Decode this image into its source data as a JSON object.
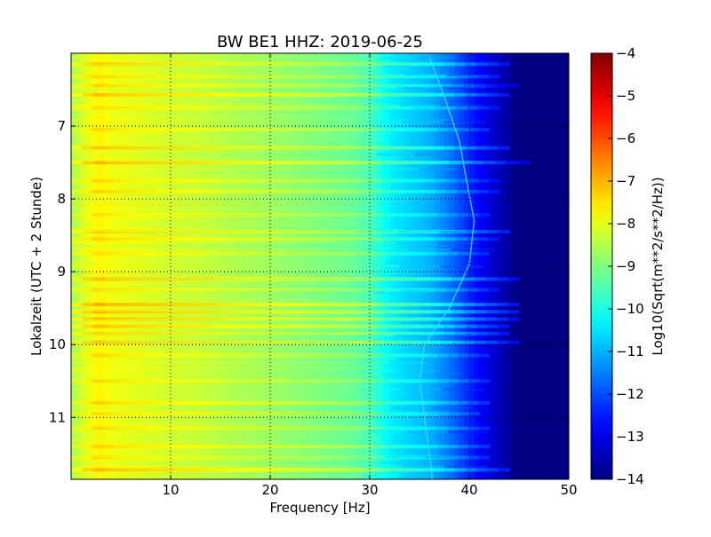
{
  "chart_data": {
    "type": "heatmap",
    "title": "BW BE1 HHZ: 2019-06-25",
    "xlabel": "Frequency [Hz]",
    "ylabel": "Lokalzeit (UTC + 2 Stunde)",
    "xlim": [
      0,
      50
    ],
    "ylim": [
      6.0,
      11.85
    ],
    "y_inverted": true,
    "x_ticks": [
      10,
      20,
      30,
      40,
      50
    ],
    "x_tick_labels": [
      "10",
      "20",
      "30",
      "40",
      "50"
    ],
    "y_ticks": [
      7,
      8,
      9,
      10,
      11
    ],
    "y_tick_labels": [
      "7",
      "8",
      "9",
      "10",
      "11"
    ],
    "grid": true,
    "colormap": "jet",
    "colorbar": {
      "label": "Log10(Sqrt(m**2/s**2/Hz))",
      "range": [
        -14,
        -4
      ],
      "ticks": [
        -4,
        -5,
        -6,
        -7,
        -8,
        -9,
        -10,
        -11,
        -12,
        -13,
        -14
      ],
      "tick_labels": [
        "−4",
        "−5",
        "−6",
        "−7",
        "−8",
        "−9",
        "−10",
        "−11",
        "−12",
        "−13",
        "−14"
      ]
    },
    "spectrum_profile": {
      "frequency_hz": [
        0,
        1,
        2,
        3,
        4,
        6,
        8,
        10,
        13,
        16,
        20,
        25,
        28,
        30,
        32,
        34,
        36,
        38,
        40,
        42,
        44,
        45,
        46,
        50
      ],
      "level": [
        -8.7,
        -8.2,
        -7.9,
        -7.6,
        -7.9,
        -8.0,
        -8.1,
        -8.2,
        -8.3,
        -8.5,
        -8.7,
        -9.0,
        -9.2,
        -9.5,
        -10.4,
        -10.7,
        -11.0,
        -11.6,
        -12.4,
        -13.1,
        -13.7,
        -14.0,
        -14.0,
        -14.0
      ]
    },
    "noise_bands": [
      {
        "time": 6.15,
        "level_shift": 1.0,
        "fmax": 44
      },
      {
        "time": 6.32,
        "level_shift": 0.8,
        "fmax": 43
      },
      {
        "time": 6.45,
        "level_shift": 0.7,
        "fmax": 45
      },
      {
        "time": 6.57,
        "level_shift": 1.0,
        "fmax": 44
      },
      {
        "time": 6.75,
        "level_shift": 0.7,
        "fmax": 43
      },
      {
        "time": 7.05,
        "level_shift": 0.6,
        "fmax": 42
      },
      {
        "time": 7.3,
        "level_shift": 1.1,
        "fmax": 44
      },
      {
        "time": 7.5,
        "level_shift": 1.2,
        "fmax": 46
      },
      {
        "time": 7.75,
        "level_shift": 0.6,
        "fmax": 43
      },
      {
        "time": 7.9,
        "level_shift": 0.7,
        "fmax": 43
      },
      {
        "time": 8.22,
        "level_shift": 0.5,
        "fmax": 42
      },
      {
        "time": 8.45,
        "level_shift": 1.1,
        "fmax": 44
      },
      {
        "time": 8.55,
        "level_shift": 0.7,
        "fmax": 43
      },
      {
        "time": 8.75,
        "level_shift": 0.6,
        "fmax": 42
      },
      {
        "time": 9.1,
        "level_shift": 1.2,
        "fmax": 45
      },
      {
        "time": 9.25,
        "level_shift": 0.7,
        "fmax": 43
      },
      {
        "time": 9.45,
        "level_shift": 1.3,
        "fmax": 45
      },
      {
        "time": 9.55,
        "level_shift": 1.3,
        "fmax": 45
      },
      {
        "time": 9.65,
        "level_shift": 1.2,
        "fmax": 45
      },
      {
        "time": 9.75,
        "level_shift": 1.0,
        "fmax": 44
      },
      {
        "time": 9.85,
        "level_shift": 1.0,
        "fmax": 44
      },
      {
        "time": 9.97,
        "level_shift": 1.2,
        "fmax": 45
      },
      {
        "time": 10.15,
        "level_shift": 0.6,
        "fmax": 42
      },
      {
        "time": 10.5,
        "level_shift": 0.6,
        "fmax": 42
      },
      {
        "time": 10.8,
        "level_shift": 0.7,
        "fmax": 42
      },
      {
        "time": 10.95,
        "level_shift": 0.5,
        "fmax": 41
      },
      {
        "time": 11.15,
        "level_shift": 0.6,
        "fmax": 42
      },
      {
        "time": 11.4,
        "level_shift": 0.7,
        "fmax": 42
      },
      {
        "time": 11.55,
        "level_shift": 0.6,
        "fmax": 42
      },
      {
        "time": 11.72,
        "level_shift": 1.1,
        "fmax": 44
      }
    ],
    "drifting_line": [
      {
        "time": 6.05,
        "frequency_hz": 36.0
      },
      {
        "time": 6.6,
        "frequency_hz": 37.5
      },
      {
        "time": 7.2,
        "frequency_hz": 39.0
      },
      {
        "time": 7.8,
        "frequency_hz": 39.8
      },
      {
        "time": 8.3,
        "frequency_hz": 40.5
      },
      {
        "time": 8.9,
        "frequency_hz": 40.0
      },
      {
        "time": 9.5,
        "frequency_hz": 38.0
      },
      {
        "time": 10.0,
        "frequency_hz": 35.5
      },
      {
        "time": 10.5,
        "frequency_hz": 35.0
      },
      {
        "time": 11.0,
        "frequency_hz": 35.5
      },
      {
        "time": 11.5,
        "frequency_hz": 36.0
      },
      {
        "time": 11.85,
        "frequency_hz": 36.3
      }
    ]
  }
}
